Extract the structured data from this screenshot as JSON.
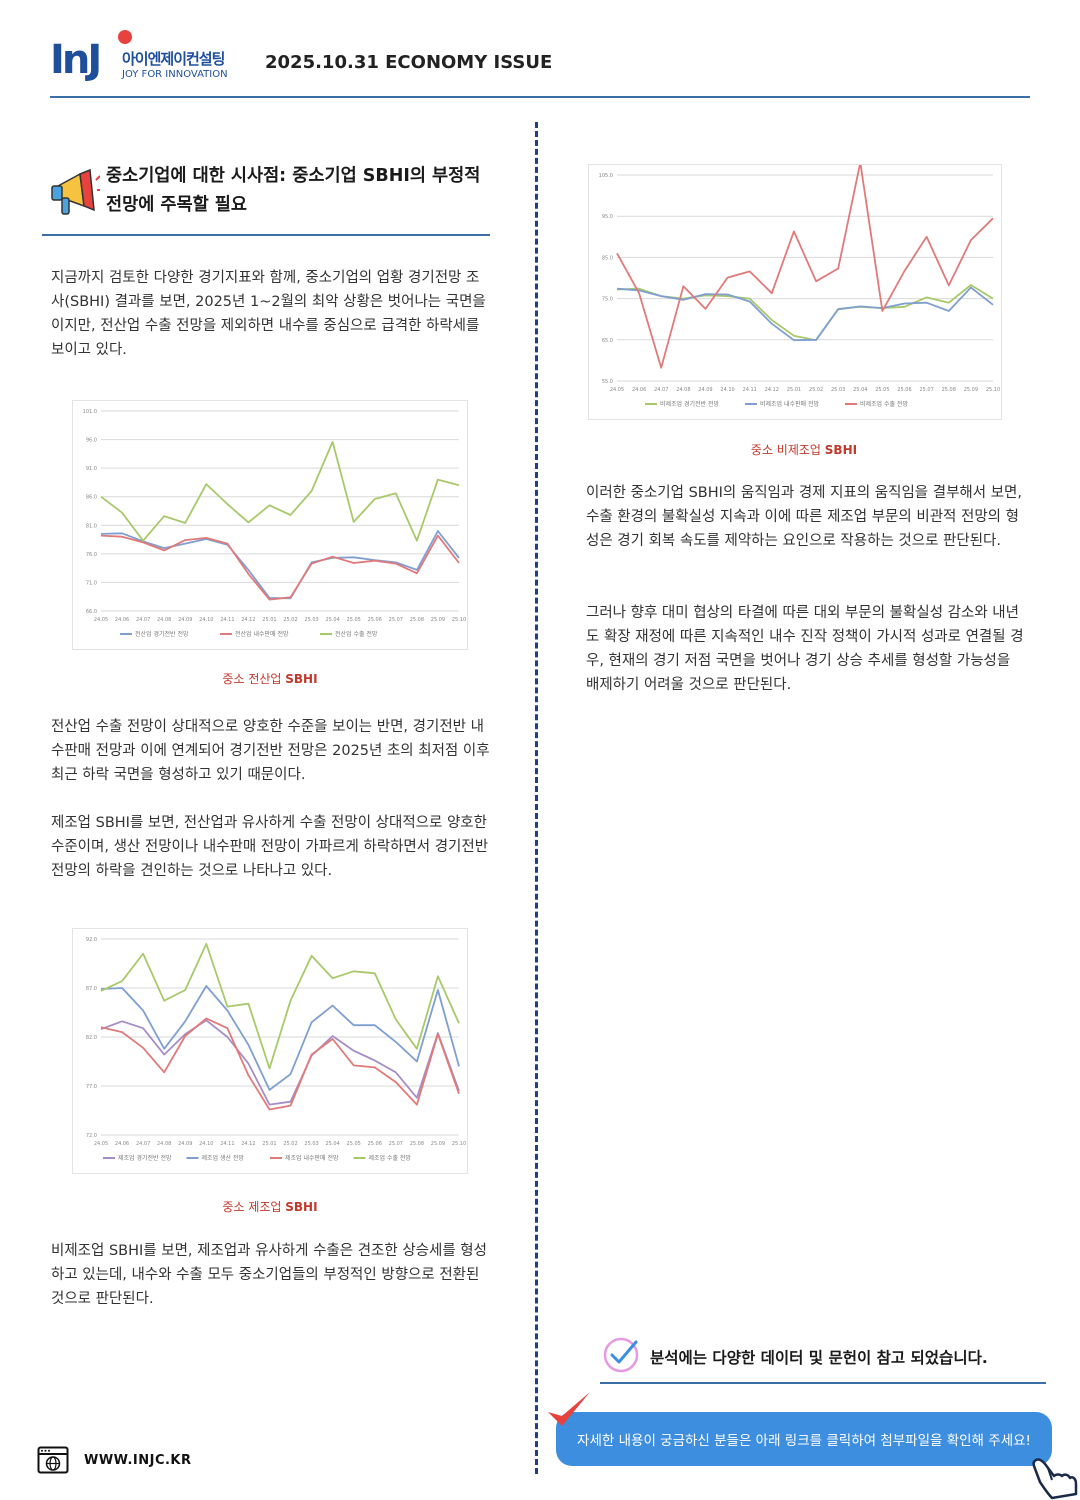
{
  "header": {
    "logo_mark": "InJ",
    "logo_korean": "아이엔제이컨설팅",
    "logo_english": "JOY FOR INNOVATION",
    "issue_title": "2025.10.31 ECONOMY ISSUE"
  },
  "section": {
    "icon": "megaphone-icon",
    "title": "중소기업에 대한 시사점: 중소기업 SBHI의 부정적 전망에 주목할 필요"
  },
  "left": {
    "p1": "지금까지 검토한 다양한 경기지표와 함께, 중소기업의 업황 경기전망 조사(SBHI) 결과를 보면, 2025년 1~2월의 최악 상황은 벗어나는 국면을 이지만, 전산업 수출 전망을 제외하면 내수를 중심으로 급격한 하락세를 보이고 있다.",
    "caption1_prefix": "중소 전산업 ",
    "caption1_bold": "SBHI",
    "p2": "전산업 수출 전망이 상대적으로 양호한 수준을 보이는 반면, 경기전반 내수판매 전망과 이에 연계되어 경기전반 전망은 2025년 초의 최저점 이후 최근 하락 국면을 형성하고 있기 때문이다.",
    "p3": "제조업 SBHI를 보면, 전산업과 유사하게 수출 전망이 상대적으로 양호한 수준이며, 생산 전망이나 내수판매 전망이 가파르게 하락하면서 경기전반 전망의 하락을 견인하는 것으로 나타나고 있다.",
    "caption2_prefix": "중소 제조업 ",
    "caption2_bold": "SBHI",
    "p4": "비제조업 SBHI를 보면, 제조업과 유사하게 수출은 견조한 상승세를 형성하고 있는데, 내수와 수출 모두 중소기업들의 부정적인 방향으로 전환된 것으로 판단된다."
  },
  "right": {
    "caption3_prefix": "중소 비제조업 ",
    "caption3_bold": "SBHI",
    "p5": "이러한 중소기업 SBHI의 움직임과 경제 지표의 움직임을 결부해서 보면, 수출 환경의 불확실성 지속과 이에 따른 제조업 부문의 비관적 전망의 형성은 경기 회복 속도를 제약하는 요인으로 작용하는 것으로 판단된다.",
    "p6": "그러나 향후 대미 협상의 타결에 따른 대외 부문의 불확실성 감소와 내년도 확장 재정에 따른 지속적인 내수 진작 정책이 가시적 성과로 연결될 경우, 현재의 경기 저점 국면을 벗어나 경기 상승 추세를 형성할 가능성을 배제하기 어려울 것으로 판단된다.",
    "reference": "분석에는 다양한 데이터 및 문헌이 참고 되었습니다.",
    "cta": "자세한 내용이 궁금하신 분들은 아래 링크를 클릭하여 첨부파일을 확인해 주세요!"
  },
  "footer": {
    "icon": "web-browser-icon",
    "url": "WWW.INJC.KR"
  },
  "chart_data": [
    {
      "type": "line",
      "categories": [
        "24.05",
        "24.06",
        "24.07",
        "24.08",
        "24.09",
        "24.10",
        "24.11",
        "24.12",
        "25.01",
        "25.02",
        "25.03",
        "25.04",
        "25.05",
        "25.06",
        "25.07",
        "25.08",
        "25.09",
        "25.10"
      ],
      "ylim": [
        66,
        101
      ],
      "yticks": [
        "101.0",
        "96.0",
        "91.0",
        "86.0",
        "81.0",
        "76.0",
        "71.0",
        "66.0"
      ],
      "series": [
        {
          "name": "전산업 경기전반 전망",
          "color": "#7f9fd0",
          "values": [
            79.5,
            79.6,
            78.2,
            77.0,
            77.8,
            78.6,
            77.6,
            73.2,
            68.3,
            68.2,
            74.5,
            75.3,
            75.4,
            74.9,
            74.5,
            73.2,
            80.0,
            75.3
          ]
        },
        {
          "name": "전산업 내수판매 전망",
          "color": "#e07a7a",
          "values": [
            79.2,
            79.0,
            78.0,
            76.6,
            78.4,
            78.8,
            77.8,
            72.5,
            68.0,
            68.4,
            74.3,
            75.5,
            74.4,
            74.8,
            74.3,
            72.6,
            79.2,
            74.4
          ]
        },
        {
          "name": "전산업 수출 전망",
          "color": "#a8c96a",
          "values": [
            86.0,
            83.2,
            78.3,
            82.6,
            81.4,
            88.2,
            84.7,
            81.5,
            84.5,
            82.8,
            87.0,
            95.6,
            81.6,
            85.6,
            86.6,
            78.3,
            89.0,
            88.0
          ]
        }
      ]
    },
    {
      "type": "line",
      "categories": [
        "24.05",
        "24.06",
        "24.07",
        "24.08",
        "24.09",
        "24.10",
        "24.11",
        "24.12",
        "25.01",
        "25.02",
        "25.03",
        "25.04",
        "25.05",
        "25.06",
        "25.07",
        "25.08",
        "25.09",
        "25.10"
      ],
      "ylim": [
        72,
        92
      ],
      "yticks": [
        "92.0",
        "87.0",
        "82.0",
        "77.0",
        "72.0"
      ],
      "series": [
        {
          "name": "제조업 경기전반 전망",
          "color": "#a58ec8",
          "values": [
            82.8,
            83.6,
            82.9,
            80.2,
            82.3,
            83.7,
            82.0,
            79.3,
            75.1,
            75.4,
            80.1,
            82.1,
            80.6,
            79.6,
            78.4,
            75.8,
            82.4,
            76.5
          ]
        },
        {
          "name": "제조업 생산 전망",
          "color": "#7f9fd0",
          "values": [
            86.9,
            87.0,
            84.7,
            80.8,
            83.6,
            87.2,
            84.7,
            81.2,
            76.6,
            78.2,
            83.5,
            85.2,
            83.2,
            83.2,
            81.5,
            79.5,
            86.8,
            79.0
          ]
        },
        {
          "name": "제조업 내수판매 전망",
          "color": "#e07a7a",
          "values": [
            83.0,
            82.5,
            80.9,
            78.4,
            82.1,
            83.9,
            82.9,
            78.1,
            74.6,
            75.0,
            80.2,
            81.8,
            79.1,
            78.9,
            77.4,
            75.1,
            82.3,
            76.2
          ]
        },
        {
          "name": "제조업 수출 전망",
          "color": "#a8c96a",
          "values": [
            86.7,
            87.7,
            90.5,
            85.7,
            86.8,
            91.5,
            85.1,
            85.4,
            78.8,
            85.7,
            90.3,
            88.0,
            88.7,
            88.5,
            83.8,
            80.8,
            88.2,
            83.4
          ]
        }
      ]
    },
    {
      "type": "line",
      "categories": [
        "24.05",
        "24.06",
        "24.07",
        "24.08",
        "24.09",
        "24.10",
        "24.11",
        "24.12",
        "25.01",
        "25.02",
        "25.03",
        "25.04",
        "25.05",
        "25.06",
        "25.07",
        "25.08",
        "25.09",
        "25.10"
      ],
      "ylim": [
        55,
        105
      ],
      "yticks": [
        "105.0",
        "95.0",
        "85.0",
        "75.0",
        "65.0",
        "55.0"
      ],
      "series": [
        {
          "name": "비제조업 경기전반 전망",
          "color": "#a8c96a",
          "values": [
            77.2,
            77.4,
            75.6,
            75.0,
            75.8,
            75.6,
            75.0,
            69.8,
            66.0,
            64.9,
            72.5,
            73.0,
            72.7,
            73.0,
            75.3,
            74.0,
            78.3,
            75.0
          ]
        },
        {
          "name": "비제조업 내수판매 전망",
          "color": "#7f9fd0",
          "values": [
            77.4,
            77.0,
            75.6,
            74.7,
            76.1,
            76.0,
            74.3,
            68.9,
            64.9,
            65.0,
            72.4,
            73.1,
            72.7,
            73.8,
            74.0,
            72.0,
            77.7,
            73.5
          ]
        },
        {
          "name": "비제조업 수출 전망",
          "color": "#e07a7a",
          "values": [
            86.0,
            76.3,
            58.2,
            78.0,
            72.5,
            80.1,
            81.6,
            76.3,
            91.3,
            79.2,
            82.3,
            108.0,
            72.0,
            81.7,
            90.0,
            78.2,
            89.2,
            94.5
          ]
        }
      ]
    }
  ]
}
